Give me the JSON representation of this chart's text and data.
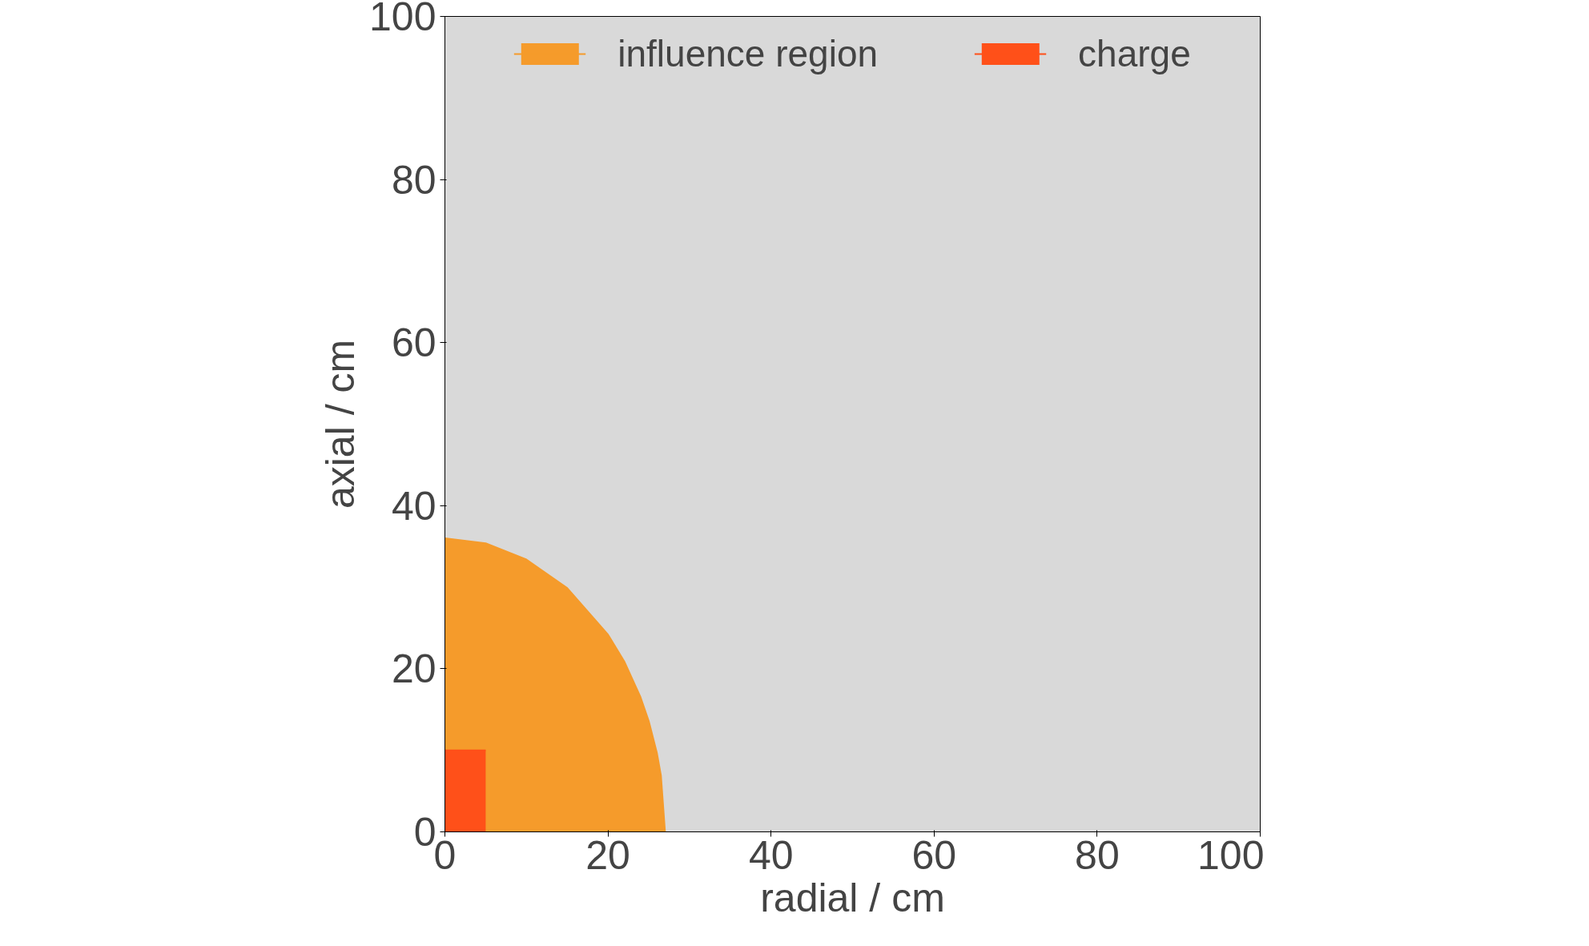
{
  "chart_data": {
    "type": "area",
    "xlabel": "radial / cm",
    "ylabel": "axial / cm",
    "xlim": [
      0,
      100
    ],
    "ylim": [
      0,
      100
    ],
    "xticks": [
      0,
      20,
      40,
      60,
      80,
      100
    ],
    "yticks": [
      0,
      20,
      40,
      60,
      80,
      100
    ],
    "grid": false,
    "legend": "top",
    "series": [
      {
        "name": "influence region",
        "color": "#f59b2b",
        "x": [
          0,
          5,
          10,
          15,
          20,
          22,
          24,
          25,
          26,
          26.5,
          27
        ],
        "values": [
          36,
          35.4,
          33.4,
          29.9,
          24.2,
          20.9,
          16.5,
          13.6,
          9.7,
          6.9,
          0
        ]
      },
      {
        "name": "charge",
        "color": "#ff5019",
        "x": [
          0,
          5
        ],
        "values": [
          10,
          10
        ]
      }
    ]
  }
}
